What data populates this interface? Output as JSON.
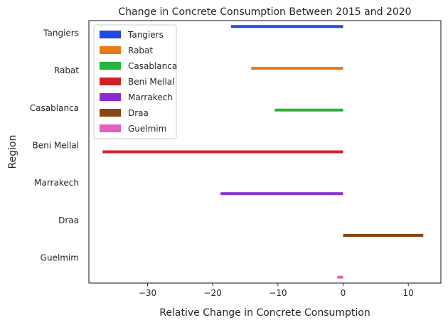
{
  "chart_data": {
    "type": "bar",
    "orientation": "horizontal",
    "title": "Change in Concrete Consumption Between 2015 and 2020",
    "xlabel": "Relative Change in Concrete Consumption",
    "ylabel": "Region",
    "xlim": [
      -39,
      15
    ],
    "xticks": [
      -30,
      -20,
      -10,
      0,
      10
    ],
    "xtick_labels": [
      "−30",
      "−20",
      "−10",
      "0",
      "10"
    ],
    "categories": [
      "Tangiers",
      "Rabat",
      "Casablanca",
      "Beni Mellal",
      "Marrakech",
      "Draa",
      "Guelmim"
    ],
    "series": [
      {
        "name": "Tangiers",
        "color": "#1f49e0",
        "values": [
          -17.2,
          null,
          null,
          null,
          null,
          null,
          null
        ]
      },
      {
        "name": "Rabat",
        "color": "#e87b14",
        "values": [
          null,
          -14.1,
          null,
          null,
          null,
          null,
          null
        ]
      },
      {
        "name": "Casablanca",
        "color": "#28b33a",
        "values": [
          null,
          null,
          -10.5,
          null,
          null,
          null,
          null
        ]
      },
      {
        "name": "Beni Mellal",
        "color": "#d22027",
        "values": [
          null,
          null,
          null,
          -36.9,
          null,
          null,
          null
        ]
      },
      {
        "name": "Marrakech",
        "color": "#8a2ed1",
        "values": [
          null,
          null,
          null,
          null,
          -18.8,
          null,
          null
        ]
      },
      {
        "name": "Draa",
        "color": "#8b4511",
        "values": [
          null,
          null,
          null,
          null,
          null,
          12.3,
          null
        ]
      },
      {
        "name": "Guelmim",
        "color": "#e363bf",
        "values": [
          null,
          null,
          null,
          null,
          null,
          null,
          -0.9
        ]
      }
    ],
    "legend_position": "top-left",
    "grid": false
  }
}
